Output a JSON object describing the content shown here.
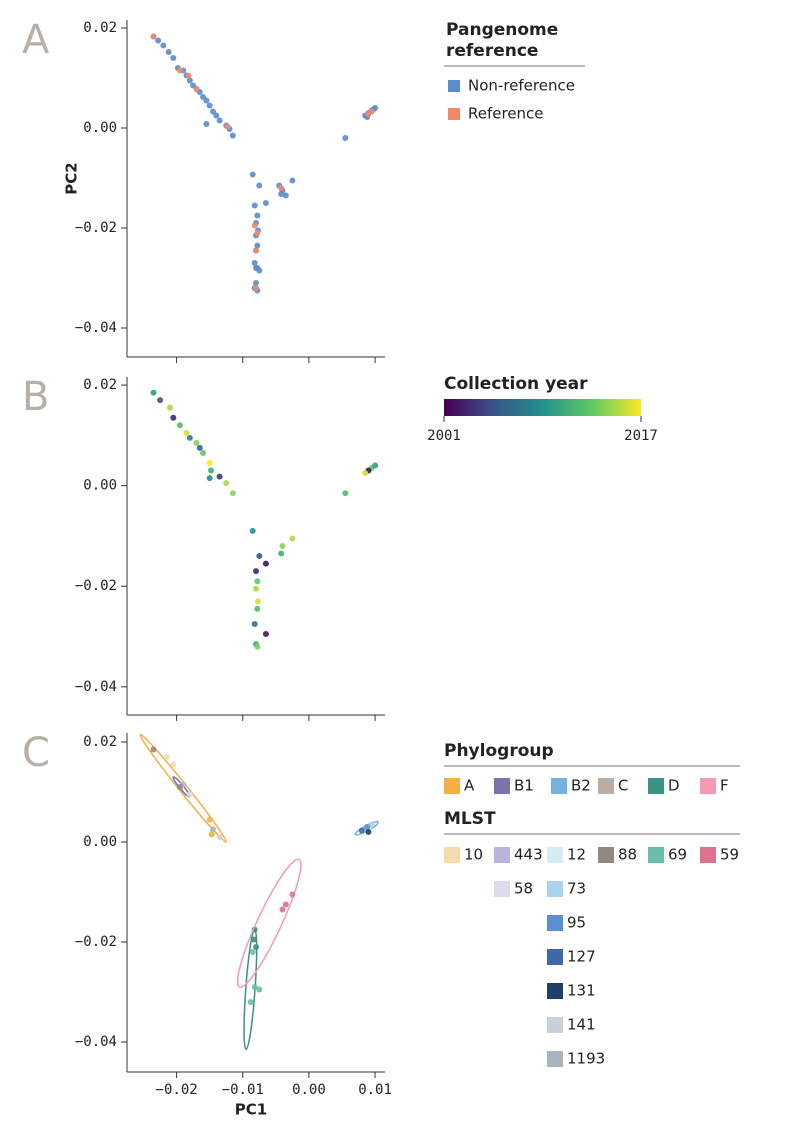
{
  "chart_data": [
    {
      "type": "scatter",
      "panel": "A",
      "ylabel": "PC2",
      "xlim": [
        -0.0275,
        0.0115
      ],
      "ylim": [
        -0.0458,
        0.0216
      ],
      "xticks": [
        -0.02,
        -0.01,
        0,
        0.01
      ],
      "xtick_labels": false,
      "yticks": [
        0.02,
        {
          "value": 0,
          "label": "0.00"
        },
        {
          "value": -0.02,
          "label": "−0.02"
        },
        {
          "value": -0.04,
          "label": "−0.04"
        }
      ],
      "legend_title": "Pangenome reference",
      "series": [
        {
          "name": "Non-reference",
          "color": "#5b8ccc",
          "x": [
            -0.0235,
            -0.0228,
            -0.022,
            -0.0212,
            -0.0205,
            -0.0198,
            -0.019,
            -0.0185,
            -0.018,
            -0.0175,
            -0.017,
            -0.0165,
            -0.016,
            -0.0155,
            -0.015,
            -0.0145,
            -0.014,
            -0.0135,
            -0.0125,
            -0.012,
            -0.0155,
            -0.0115,
            0.0095,
            0.01,
            0.009,
            0.0085,
            0.0098,
            0.0055,
            0.0088,
            -0.0085,
            -0.0075,
            -0.0045,
            -0.004,
            -0.0035,
            -0.0025,
            -0.0042,
            -0.0065,
            -0.0082,
            -0.0078,
            -0.008,
            -0.0077,
            -0.008,
            -0.0078,
            -0.008,
            -0.0082,
            -0.0078,
            -0.0075,
            -0.008,
            -0.0082,
            -0.0078,
            -0.008
          ],
          "y": [
            0.0183,
            0.0175,
            0.0165,
            0.0152,
            0.014,
            0.012,
            0.0115,
            0.0105,
            0.0095,
            0.0085,
            0.0078,
            0.0072,
            0.0062,
            0.0055,
            0.0045,
            0.0033,
            0.0025,
            0.0015,
            0.0005,
            -0.0002,
            0.0008,
            -0.0015,
            0.0035,
            0.004,
            0.003,
            0.0025,
            0.0038,
            -0.002,
            0.0022,
            -0.0093,
            -0.0115,
            -0.0115,
            -0.0125,
            -0.0135,
            -0.0105,
            -0.0132,
            -0.015,
            -0.0155,
            -0.0175,
            -0.019,
            -0.0205,
            -0.0215,
            -0.0235,
            -0.0245,
            -0.027,
            -0.028,
            -0.0285,
            -0.031,
            -0.032,
            -0.0325,
            -0.028
          ]
        },
        {
          "name": "Reference",
          "color": "#f0896a",
          "x": [
            -0.0235,
            -0.0195,
            -0.0182,
            -0.017,
            -0.0123,
            0.0095,
            0.009,
            -0.0082,
            -0.0078,
            -0.008,
            -0.0042,
            -0.008
          ],
          "y": [
            0.0183,
            0.0115,
            0.0105,
            0.0078,
            0.0003,
            0.0033,
            0.0028,
            -0.0195,
            -0.021,
            -0.0245,
            -0.012,
            -0.032
          ]
        }
      ]
    },
    {
      "type": "scatter",
      "panel": "B",
      "xlim": [
        -0.0275,
        0.0115
      ],
      "ylim": [
        -0.0456,
        0.0216
      ],
      "xticks": [
        -0.02,
        -0.01,
        0,
        0.01
      ],
      "xtick_labels": false,
      "yticks": [
        0.02,
        {
          "value": 0,
          "label": "0.00"
        },
        {
          "value": -0.02,
          "label": "−0.02"
        },
        {
          "value": -0.04,
          "label": "−0.04"
        }
      ],
      "colorbar": {
        "title": "Collection year",
        "range": [
          2001,
          2017
        ],
        "colors": [
          "#440154",
          "#3b528b",
          "#21918c",
          "#5ec962",
          "#fde725"
        ]
      },
      "points": {
        "x": [
          -0.0235,
          -0.0225,
          -0.021,
          -0.0205,
          -0.0195,
          -0.0185,
          -0.018,
          -0.017,
          -0.0165,
          -0.016,
          -0.015,
          -0.0148,
          -0.015,
          -0.0135,
          -0.0125,
          -0.0115,
          0.0095,
          0.009,
          0.0085,
          0.01,
          0.0055,
          -0.0085,
          -0.0075,
          -0.0065,
          -0.004,
          -0.0025,
          -0.0042,
          -0.008,
          -0.0078,
          -0.008,
          -0.0077,
          -0.0078,
          -0.0082,
          -0.0065,
          -0.008,
          -0.0078
        ],
        "y": [
          0.0185,
          0.017,
          0.0155,
          0.0135,
          0.012,
          0.0105,
          0.0095,
          0.0085,
          0.0075,
          0.0065,
          0.0045,
          0.003,
          0.0015,
          0.0018,
          0.0005,
          -0.0015,
          0.0035,
          0.003,
          0.0025,
          0.004,
          -0.0015,
          -0.009,
          -0.014,
          -0.0155,
          -0.012,
          -0.0105,
          -0.0135,
          -0.017,
          -0.019,
          -0.0205,
          -0.023,
          -0.0245,
          -0.0275,
          -0.0295,
          -0.0315,
          -0.032
        ],
        "years": [
          2010,
          2005,
          2015,
          2003,
          2012,
          2016,
          2008,
          2014,
          2006,
          2013,
          2017,
          2011,
          2009,
          2004,
          2015,
          2014,
          2013,
          2002,
          2016,
          2010,
          2012,
          2009,
          2005,
          2002,
          2014,
          2015,
          2011,
          2003,
          2013,
          2015,
          2016,
          2012,
          2007,
          2002,
          2011,
          2014
        ]
      }
    },
    {
      "type": "scatter",
      "panel": "C",
      "xlabel": "PC1",
      "xlim": [
        -0.0275,
        0.0115
      ],
      "ylim": [
        -0.046,
        0.0218
      ],
      "xticks": [
        {
          "value": -0.02,
          "label": "−0.02"
        },
        {
          "value": -0.01,
          "label": "−0.01"
        },
        {
          "value": 0,
          "label": "0.00"
        },
        0.01
      ],
      "yticks": [
        0.02,
        {
          "value": 0,
          "label": "0.00"
        },
        {
          "value": -0.02,
          "label": "−0.02"
        },
        {
          "value": -0.04,
          "label": "−0.04"
        }
      ],
      "legends": [
        {
          "title": "Phylogroup",
          "series": [
            {
              "name": "A",
              "color": "#f5b042",
              "x": [
                -0.015,
                -0.0147
              ],
              "y": [
                0.0045,
                0.0015
              ],
              "ellipse": {
                "ends": [
                  [
                    -0.0255,
                    0.0215
                  ],
                  [
                    -0.0125,
                    0.0
                  ]
                ],
                "half_width": 0.0006
              }
            },
            {
              "name": "B1",
              "color": "#7a73ad",
              "x": [],
              "y": [],
              "ellipse": {
                "ends": [
                  [
                    -0.0205,
                    0.013
                  ],
                  [
                    -0.018,
                    0.009
                  ]
                ],
                "half_width": 0.0003
              }
            },
            {
              "name": "B2",
              "color": "#72b3e0",
              "x": [],
              "y": [],
              "ellipse": {
                "ends": [
                  [
                    0.007,
                    0.0015
                  ],
                  [
                    0.0105,
                    0.004
                  ]
                ],
                "half_width": 0.0004
              }
            },
            {
              "name": "C",
              "color": "#b8aea5",
              "x": [],
              "y": []
            },
            {
              "name": "D",
              "color": "#3a9283",
              "x": [
                -0.0082,
                -0.0083,
                -0.008
              ],
              "y": [
                -0.0175,
                -0.0195,
                -0.021
              ],
              "ellipse": {
                "ends": [
                  [
                    -0.0082,
                    -0.0175
                  ],
                  [
                    -0.0095,
                    -0.0415
                  ]
                ],
                "half_width": 0.0007
              }
            },
            {
              "name": "F",
              "color": "#f39ab2",
              "x": [],
              "y": [],
              "ellipse": {
                "ends": [
                  [
                    -0.0015,
                    -0.0035
                  ],
                  [
                    -0.0105,
                    -0.029
                  ]
                ],
                "half_width": 0.0018
              }
            }
          ]
        },
        {
          "title": "MLST",
          "series": [
            {
              "name": "10",
              "color": "#f2dcb0",
              "x": [
                -0.0215,
                -0.0205
              ],
              "y": [
                0.017,
                0.0155
              ]
            },
            {
              "name": "443",
              "color": "#b7b5db",
              "x": [
                -0.019
              ],
              "y": [
                0.0115
              ]
            },
            {
              "name": "12",
              "color": "#d4ecf2",
              "x": [
                0.009
              ],
              "y": [
                0.0028
              ]
            },
            {
              "name": "88",
              "color": "#8f8984",
              "x": [
                -0.0235,
                -0.0195
              ],
              "y": [
                0.0185,
                0.011
              ]
            },
            {
              "name": "69",
              "color": "#69bfa8",
              "x": [
                -0.0085,
                -0.0082,
                -0.0088,
                -0.0075
              ],
              "y": [
                -0.022,
                -0.029,
                -0.032,
                -0.0295
              ]
            },
            {
              "name": "59",
              "color": "#e07090",
              "x": [
                -0.0035,
                -0.0025,
                -0.004
              ],
              "y": [
                -0.0125,
                -0.0105,
                -0.0135
              ]
            },
            {
              "name": "58",
              "color": "#dcdcee",
              "x": [
                -0.018
              ],
              "y": [
                0.0095
              ]
            },
            {
              "name": "73",
              "color": "#a9d3ef",
              "x": [
                0.0095,
                0.0085
              ],
              "y": [
                0.0035,
                0.0025
              ]
            },
            {
              "name": "95",
              "color": "#5b8fd0",
              "x": [
                0.0088
              ],
              "y": [
                0.003
              ]
            },
            {
              "name": "127",
              "color": "#3f69a6",
              "x": [
                0.008
              ],
              "y": [
                0.0023
              ]
            },
            {
              "name": "131",
              "color": "#1f3f66",
              "x": [
                0.009
              ],
              "y": [
                0.002
              ]
            },
            {
              "name": "141",
              "color": "#c8d1da",
              "x": [
                -0.0135
              ],
              "y": [
                0.001
              ]
            },
            {
              "name": "1193",
              "color": "#a7b3bf",
              "x": [
                -0.0145
              ],
              "y": [
                0.0025
              ]
            }
          ]
        }
      ]
    }
  ]
}
